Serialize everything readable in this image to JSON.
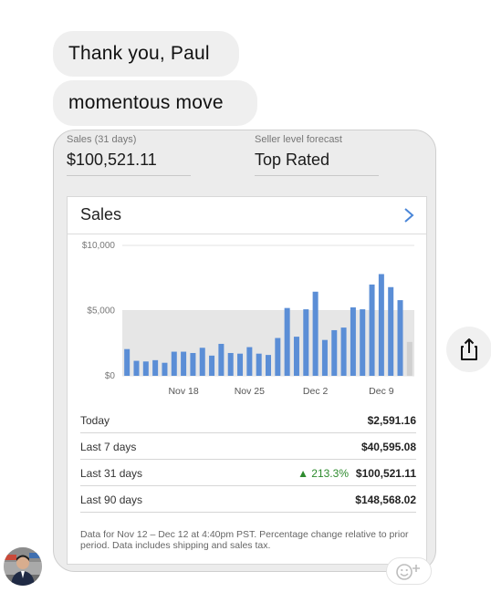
{
  "messages": [
    {
      "text": "Thank you, Paul"
    },
    {
      "text": "momentous move"
    }
  ],
  "card": {
    "stats": [
      {
        "label": "Sales (31 days)",
        "value": "$100,521.11"
      },
      {
        "label": "Seller level forecast",
        "value": "Top Rated"
      }
    ],
    "panel_title": "Sales",
    "rows": [
      {
        "label": "Today",
        "value": "$2,591.16",
        "change": ""
      },
      {
        "label": "Last 7 days",
        "value": "$40,595.08",
        "change": ""
      },
      {
        "label": "Last 31 days",
        "value": "$100,521.11",
        "change": "▲ 213.3%"
      },
      {
        "label": "Last 90 days",
        "value": "$148,568.02",
        "change": ""
      }
    ],
    "footnote": "Data for Nov 12 – Dec 12 at 4:40pm PST. Percentage change relative to prior period. Data includes shipping and sales tax."
  },
  "chart_data": {
    "type": "bar",
    "ylim": [
      0,
      10000
    ],
    "yticks": [
      "$10,000",
      "$5,000",
      "$0"
    ],
    "xticks": [
      "Nov 18",
      "Nov 25",
      "Dec 2",
      "Dec 9"
    ],
    "xtick_index": [
      6,
      13,
      20,
      27
    ],
    "values": [
      2050,
      1150,
      1100,
      1200,
      1000,
      1850,
      1850,
      1750,
      2150,
      1550,
      2450,
      1750,
      1700,
      2200,
      1700,
      1600,
      2900,
      5200,
      3000,
      5100,
      6450,
      2750,
      3500,
      3700,
      5250,
      5100,
      7000,
      7800,
      6800,
      5800,
      2600
    ],
    "colors": {
      "bar": "#5b8ed6",
      "prior_period": "#e6e6e6",
      "today": "#d0d0d0",
      "gain": "#2e8b2e"
    }
  },
  "icons": {
    "chevron": "chevron-right-icon",
    "share": "share-icon",
    "react": "add-reaction-icon"
  }
}
